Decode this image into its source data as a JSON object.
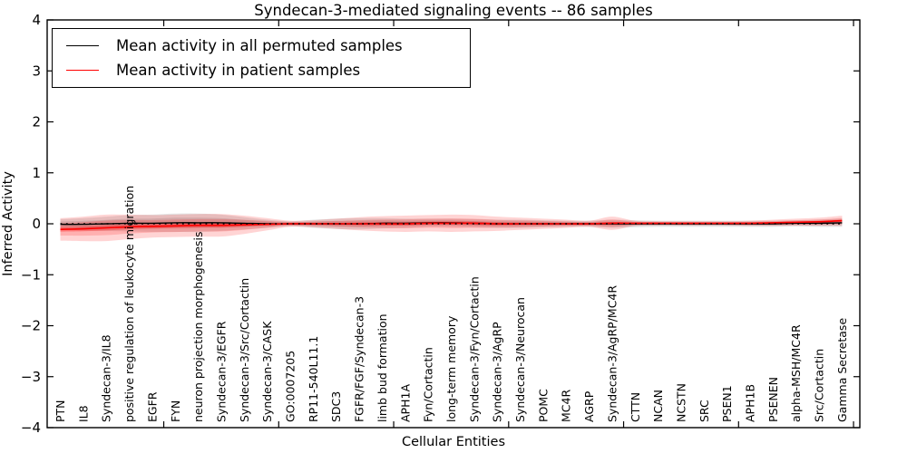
{
  "chart_data": {
    "type": "line",
    "title": "Syndecan-3-mediated signaling events -- 86 samples",
    "xlabel": "Cellular Entities",
    "ylabel": "Inferred Activity",
    "ylim": [
      -4,
      4
    ],
    "grid": false,
    "legend_position": "upper left",
    "zero_line": {
      "style": "dotted",
      "color": "#000000",
      "y": 0
    },
    "yticks": {
      "values": [
        4,
        3,
        2,
        1,
        0,
        -1,
        -2,
        -3,
        -4
      ],
      "labels": [
        "4",
        "3",
        "2",
        "1",
        "0",
        "−1",
        "−2",
        "−3",
        "−4"
      ]
    },
    "xticks_major_positions": [
      5,
      10,
      15,
      20,
      25,
      30,
      35
    ],
    "categories": [
      "PTN",
      "IL8",
      "Syndecan-3/IL8",
      "positive regulation of leukocyte migration",
      "EGFR",
      "FYN",
      "neuron projection morphogenesis",
      "Syndecan-3/EGFR",
      "Syndecan-3/Src/Cortactin",
      "Syndecan-3/CASK",
      "GO:0007205",
      "RP11-540L11.1",
      "SDC3",
      "FGFR/FGF/Syndecan-3",
      "limb bud formation",
      "APH1A",
      "Fyn/Cortactin",
      "long-term memory",
      "Syndecan-3/Fyn/Cortactin",
      "Syndecan-3/AgRP",
      "Syndecan-3/Neurocan",
      "POMC",
      "MC4R",
      "AGRP",
      "Syndecan-3/AgRP/MC4R",
      "CTTN",
      "NCAN",
      "NCSTN",
      "SRC",
      "PSEN1",
      "APH1B",
      "PSENEN",
      "alpha-MSH/MC4R",
      "Src/Cortactin",
      "Gamma Secretase"
    ],
    "series": [
      {
        "name": "Mean activity in all permuted samples",
        "color": "#000000",
        "band_color": "rgba(0,0,0,0.11)",
        "mean": [
          -0.01,
          -0.01,
          0,
          0.01,
          0.01,
          0.02,
          0.02,
          0.02,
          0.01,
          0,
          0,
          0,
          0,
          0,
          0.01,
          0.01,
          0.02,
          0.02,
          0.01,
          0,
          0,
          0,
          0,
          0,
          0,
          0,
          0,
          0,
          0,
          0,
          0,
          0,
          0.01,
          0.01,
          0.02
        ],
        "std": [
          0.1,
          0.12,
          0.14,
          0.16,
          0.17,
          0.18,
          0.18,
          0.16,
          0.12,
          0.08,
          0.05,
          0.08,
          0.1,
          0.11,
          0.1,
          0.09,
          0.08,
          0.08,
          0.08,
          0.08,
          0.08,
          0.07,
          0.06,
          0.06,
          0.08,
          0.07,
          0.06,
          0.06,
          0.06,
          0.06,
          0.06,
          0.06,
          0.06,
          0.07,
          0.08
        ]
      },
      {
        "name": "Mean activity in patient samples",
        "color": "#ff0000",
        "band_color": "rgba(255,0,0,0.17)",
        "mean": [
          -0.11,
          -0.1,
          -0.08,
          -0.06,
          -0.05,
          -0.04,
          -0.03,
          -0.03,
          -0.02,
          -0.01,
          0,
          0,
          0,
          0,
          0,
          0,
          0.01,
          0.01,
          0.01,
          0,
          0,
          0,
          0,
          0,
          0.01,
          0.01,
          0.01,
          0.01,
          0.01,
          0.01,
          0.01,
          0.02,
          0.03,
          0.04,
          0.06
        ],
        "std": [
          0.22,
          0.24,
          0.26,
          0.24,
          0.22,
          0.22,
          0.22,
          0.22,
          0.18,
          0.12,
          0.06,
          0.07,
          0.1,
          0.13,
          0.15,
          0.16,
          0.16,
          0.17,
          0.16,
          0.14,
          0.12,
          0.1,
          0.08,
          0.06,
          0.13,
          0.05,
          0.04,
          0.04,
          0.04,
          0.04,
          0.05,
          0.06,
          0.07,
          0.08,
          0.1
        ]
      }
    ]
  }
}
